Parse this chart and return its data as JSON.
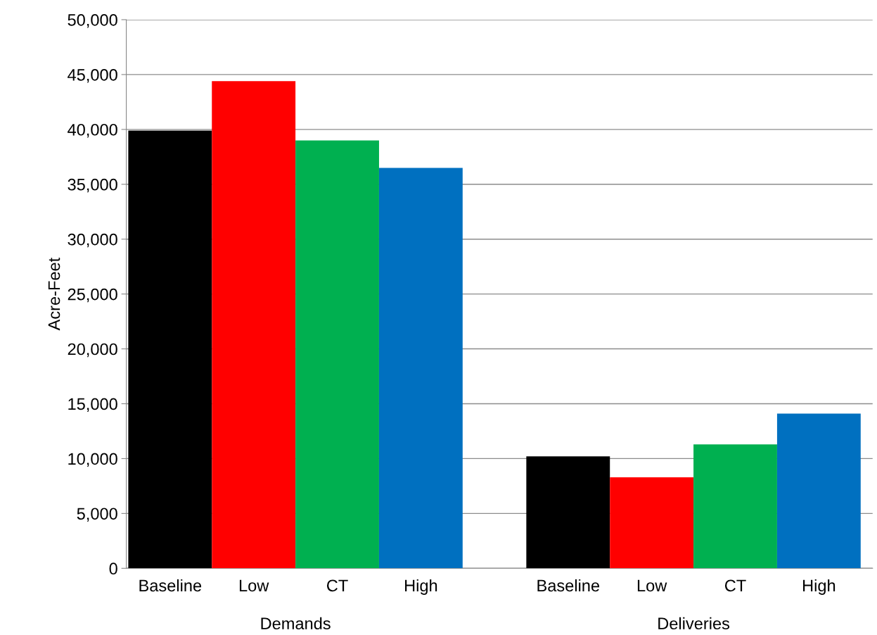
{
  "chart_data": {
    "type": "bar",
    "ylabel": "Acre-Feet",
    "categories": [
      "Demands",
      "Deliveries"
    ],
    "series": [
      {
        "name": "Baseline",
        "color": "#000000",
        "values": [
          39900,
          10200
        ]
      },
      {
        "name": "Low",
        "color": "#ff0000",
        "values": [
          44400,
          8300
        ]
      },
      {
        "name": "CT",
        "color": "#00b050",
        "values": [
          39000,
          11300
        ]
      },
      {
        "name": "High",
        "color": "#0070c0",
        "values": [
          36500,
          14100
        ]
      }
    ],
    "ylim": [
      0,
      50000
    ],
    "yticks": [
      {
        "value": 0,
        "label": "0"
      },
      {
        "value": 5000,
        "label": "5,000"
      },
      {
        "value": 10000,
        "label": "10,000"
      },
      {
        "value": 15000,
        "label": "15,000"
      },
      {
        "value": 20000,
        "label": "20,000"
      },
      {
        "value": 25000,
        "label": "25,000"
      },
      {
        "value": 30000,
        "label": "30,000"
      },
      {
        "value": 35000,
        "label": "35,000"
      },
      {
        "value": 40000,
        "label": "40,000"
      },
      {
        "value": 45000,
        "label": "45,000"
      },
      {
        "value": 50000,
        "label": "50,000"
      }
    ],
    "grid": "y",
    "legend": false
  }
}
